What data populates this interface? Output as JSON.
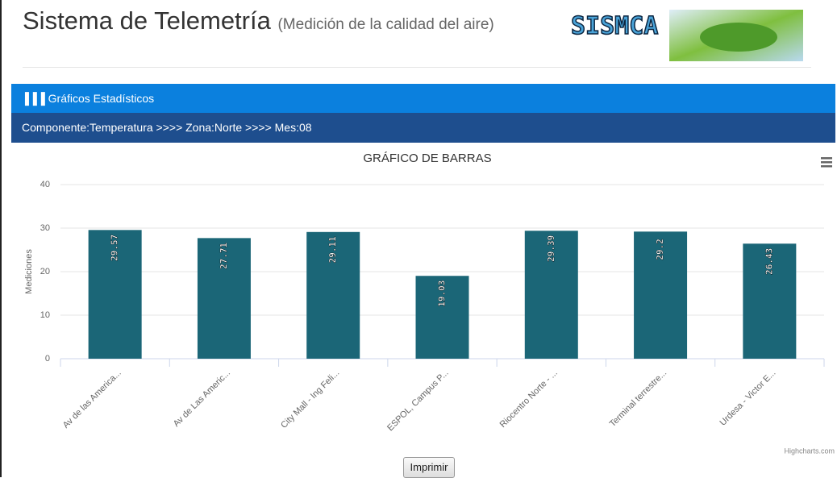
{
  "header": {
    "title": "Sistema de Telemetría",
    "subtitle": "(Medición de la calidad del aire)",
    "logo": "SISMCA"
  },
  "panel": {
    "title": "Gráficos Estadísticos",
    "filter": "Componente:Temperatura >>>> Zona:Norte >>>> Mes:08"
  },
  "chart_data": {
    "type": "bar",
    "title": "GRÁFICO DE BARRAS",
    "y_label": "Mediciones",
    "categories": [
      "Av de las America...",
      "Av de Las Americ...",
      "City Mall - Ing Feli...",
      "ESPOL, Campus P...",
      "Riocentro Norte - ...",
      "Terminal terrestre...",
      "Urdesa - Victor E..."
    ],
    "values": [
      29.57,
      27.71,
      29.11,
      19.03,
      29.39,
      29.2,
      26.43
    ],
    "color": "#1b6677",
    "ylim": [
      0,
      40
    ],
    "yticks": [
      0,
      10,
      20,
      30,
      40
    ],
    "grid": true,
    "credits": "Highcharts.com"
  },
  "button": "Imprimir"
}
